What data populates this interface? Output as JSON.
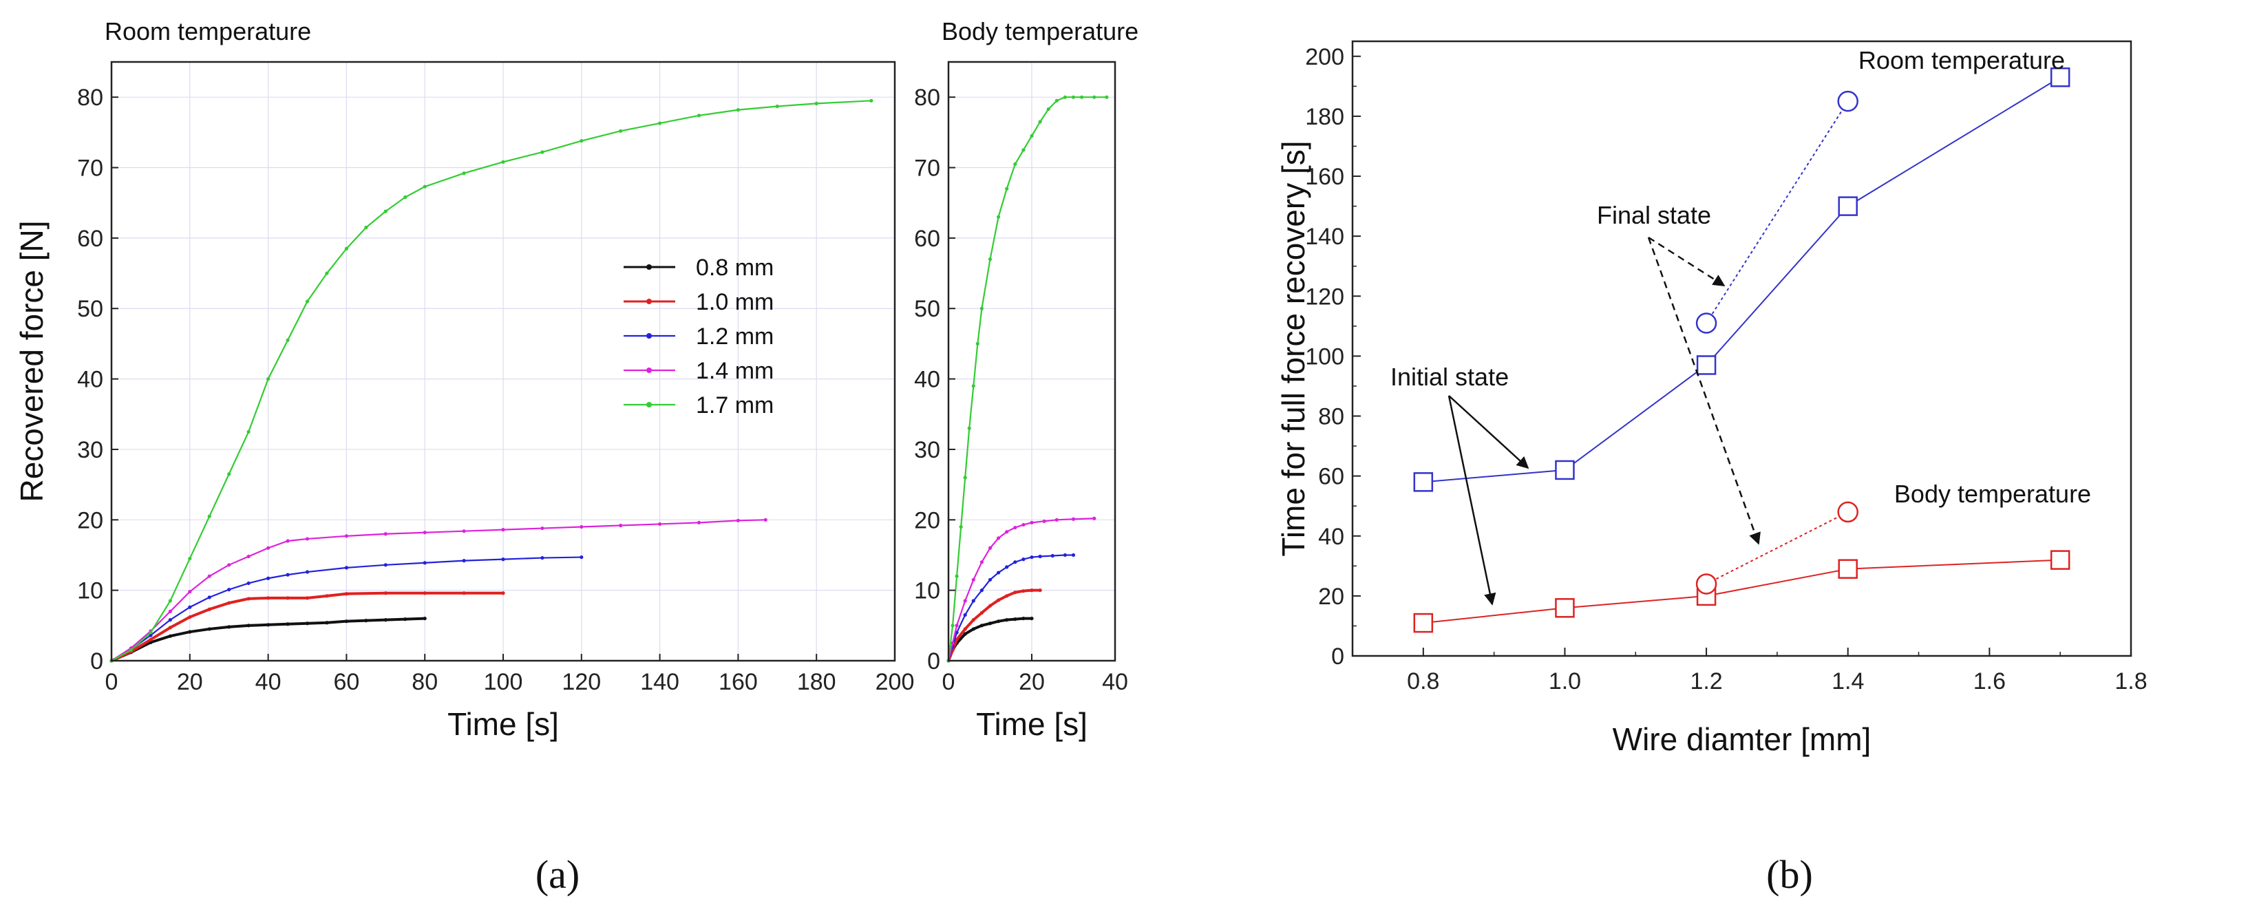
{
  "chart_data": [
    {
      "id": "a-room",
      "type": "line",
      "title": "Room temperature",
      "xlabel": "Time [s]",
      "ylabel": "Recovered force [N]",
      "xlim": [
        0,
        200
      ],
      "ylim": [
        0,
        85
      ],
      "xticks": [
        0,
        20,
        40,
        60,
        80,
        100,
        120,
        140,
        160,
        180,
        200
      ],
      "yticks": [
        0,
        10,
        20,
        30,
        40,
        50,
        60,
        70,
        80
      ],
      "grid": true,
      "legend_position": "middle-right",
      "series": [
        {
          "name": "0.8 mm",
          "color": "#111111",
          "x": [
            0,
            5,
            10,
            15,
            20,
            25,
            30,
            35,
            40,
            45,
            50,
            55,
            60,
            65,
            70,
            75,
            80
          ],
          "y": [
            0,
            1.2,
            2.6,
            3.5,
            4.1,
            4.5,
            4.8,
            5.0,
            5.1,
            5.2,
            5.3,
            5.4,
            5.6,
            5.7,
            5.8,
            5.9,
            6.0
          ]
        },
        {
          "name": "1.0 mm",
          "color": "#e02020",
          "x": [
            0,
            5,
            10,
            15,
            20,
            25,
            30,
            35,
            40,
            45,
            50,
            55,
            60,
            70,
            80,
            90,
            100
          ],
          "y": [
            0,
            1.3,
            3.0,
            4.7,
            6.2,
            7.3,
            8.2,
            8.8,
            8.9,
            8.9,
            8.9,
            9.2,
            9.5,
            9.6,
            9.6,
            9.6,
            9.6
          ]
        },
        {
          "name": "1.2 mm",
          "color": "#2222dd",
          "x": [
            0,
            5,
            10,
            15,
            20,
            25,
            30,
            35,
            40,
            45,
            50,
            60,
            70,
            80,
            90,
            100,
            110,
            120
          ],
          "y": [
            0,
            1.6,
            3.6,
            5.8,
            7.6,
            9.0,
            10.1,
            11.0,
            11.7,
            12.2,
            12.6,
            13.2,
            13.6,
            13.9,
            14.2,
            14.4,
            14.6,
            14.7
          ]
        },
        {
          "name": "1.4 mm",
          "color": "#dd22dd",
          "x": [
            0,
            5,
            10,
            15,
            20,
            25,
            30,
            35,
            40,
            45,
            50,
            60,
            70,
            80,
            90,
            100,
            110,
            120,
            130,
            140,
            150,
            160,
            167
          ],
          "y": [
            0,
            1.8,
            4.2,
            7.0,
            9.8,
            12.0,
            13.6,
            14.8,
            16.0,
            17.0,
            17.3,
            17.7,
            18.0,
            18.2,
            18.4,
            18.6,
            18.8,
            19.0,
            19.2,
            19.4,
            19.6,
            19.9,
            20.0
          ]
        },
        {
          "name": "1.7 mm",
          "color": "#33cc33",
          "x": [
            0,
            5,
            10,
            15,
            20,
            25,
            30,
            35,
            40,
            45,
            50,
            55,
            60,
            65,
            70,
            75,
            80,
            90,
            100,
            110,
            120,
            130,
            140,
            150,
            160,
            170,
            180,
            194
          ],
          "y": [
            0,
            1.5,
            4.0,
            8.5,
            14.5,
            20.5,
            26.5,
            32.5,
            40.0,
            45.5,
            51.0,
            55.0,
            58.5,
            61.5,
            63.8,
            65.8,
            67.3,
            69.2,
            70.8,
            72.2,
            73.8,
            75.2,
            76.3,
            77.4,
            78.2,
            78.7,
            79.1,
            79.5
          ]
        }
      ]
    },
    {
      "id": "a-body",
      "type": "line",
      "title": "Body temperature",
      "xlabel": "Time [s]",
      "ylabel": "",
      "xlim": [
        0,
        40
      ],
      "ylim": [
        0,
        85
      ],
      "xticks": [
        0,
        20,
        40
      ],
      "yticks": [
        0,
        10,
        20,
        30,
        40,
        50,
        60,
        70,
        80
      ],
      "grid": true,
      "series": [
        {
          "name": "0.8 mm",
          "color": "#111111",
          "x": [
            0,
            1,
            2,
            4,
            6,
            8,
            10,
            12,
            14,
            16,
            18,
            20
          ],
          "y": [
            0,
            1.5,
            2.5,
            3.8,
            4.5,
            5.0,
            5.3,
            5.6,
            5.8,
            5.9,
            6.0,
            6.0
          ]
        },
        {
          "name": "1.0 mm",
          "color": "#e02020",
          "x": [
            0,
            1,
            2,
            4,
            6,
            8,
            10,
            12,
            14,
            16,
            18,
            20,
            22
          ],
          "y": [
            0,
            1.5,
            3.0,
            4.5,
            5.8,
            6.8,
            7.8,
            8.6,
            9.2,
            9.7,
            9.9,
            10.0,
            10.0
          ]
        },
        {
          "name": "1.2 mm",
          "color": "#2222dd",
          "x": [
            0,
            1,
            2,
            4,
            6,
            8,
            10,
            12,
            14,
            16,
            18,
            20,
            22,
            25,
            28,
            30
          ],
          "y": [
            0,
            2.0,
            4.0,
            6.5,
            8.5,
            10.0,
            11.5,
            12.5,
            13.3,
            14.0,
            14.4,
            14.7,
            14.8,
            14.9,
            15.0,
            15.0
          ]
        },
        {
          "name": "1.4 mm",
          "color": "#dd22dd",
          "x": [
            0,
            1,
            2,
            4,
            6,
            8,
            10,
            12,
            14,
            16,
            18,
            20,
            23,
            26,
            30,
            35
          ],
          "y": [
            0,
            2.5,
            5.0,
            8.5,
            11.5,
            14.0,
            16.0,
            17.4,
            18.3,
            18.9,
            19.3,
            19.6,
            19.8,
            20.0,
            20.1,
            20.2
          ]
        },
        {
          "name": "1.7 mm",
          "color": "#33cc33",
          "x": [
            0,
            1,
            2,
            3,
            4,
            5,
            6,
            7,
            8,
            10,
            12,
            14,
            16,
            18,
            20,
            22,
            24,
            26,
            28,
            30,
            32,
            35,
            38
          ],
          "y": [
            0,
            5,
            12,
            19,
            26,
            33,
            39,
            45,
            50,
            57,
            63,
            67,
            70.5,
            72.5,
            74.5,
            76.5,
            78.3,
            79.5,
            80,
            80,
            80,
            80,
            80
          ]
        }
      ]
    },
    {
      "id": "b",
      "type": "scatter",
      "title": "",
      "xlabel": "Wire diamter [mm]",
      "ylabel": "Time for full force recovery [s]",
      "xlim": [
        0.7,
        1.8
      ],
      "ylim": [
        0,
        205
      ],
      "xticks": [
        0.8,
        1.0,
        1.2,
        1.4,
        1.6,
        1.8
      ],
      "xticklabels": [
        "0.8",
        "1.0",
        "1.2",
        "1.4",
        "1.6",
        "1.8"
      ],
      "yticks": [
        0,
        20,
        40,
        60,
        80,
        100,
        120,
        140,
        160,
        180,
        200
      ],
      "grid": false,
      "series": [
        {
          "name": "Room temperature",
          "group": "initial",
          "marker": "square",
          "line": "solid",
          "color": "#3333cc",
          "x": [
            0.8,
            1.0,
            1.2,
            1.4,
            1.7
          ],
          "y": [
            58,
            62,
            97,
            150,
            193
          ]
        },
        {
          "name": "Room temperature",
          "group": "final",
          "marker": "circle",
          "line": "dotted",
          "color": "#3333cc",
          "x": [
            1.2,
            1.4
          ],
          "y": [
            111,
            185
          ]
        },
        {
          "name": "Body temperature",
          "group": "initial",
          "marker": "square",
          "line": "solid",
          "color": "#dd2222",
          "x": [
            0.8,
            1.0,
            1.2,
            1.4,
            1.7
          ],
          "y": [
            11,
            16,
            20,
            29,
            32
          ]
        },
        {
          "name": "Body temperature",
          "group": "final",
          "marker": "circle",
          "line": "dotted",
          "color": "#dd2222",
          "x": [
            1.2,
            1.4
          ],
          "y": [
            24,
            48
          ]
        }
      ],
      "annotations": {
        "final_state": "Final state",
        "initial_state": "Initial state"
      },
      "series_labels": {
        "room": "Room temperature",
        "body": "Body temperature"
      }
    }
  ],
  "captions": {
    "a": "(a)",
    "b": "(b)"
  }
}
